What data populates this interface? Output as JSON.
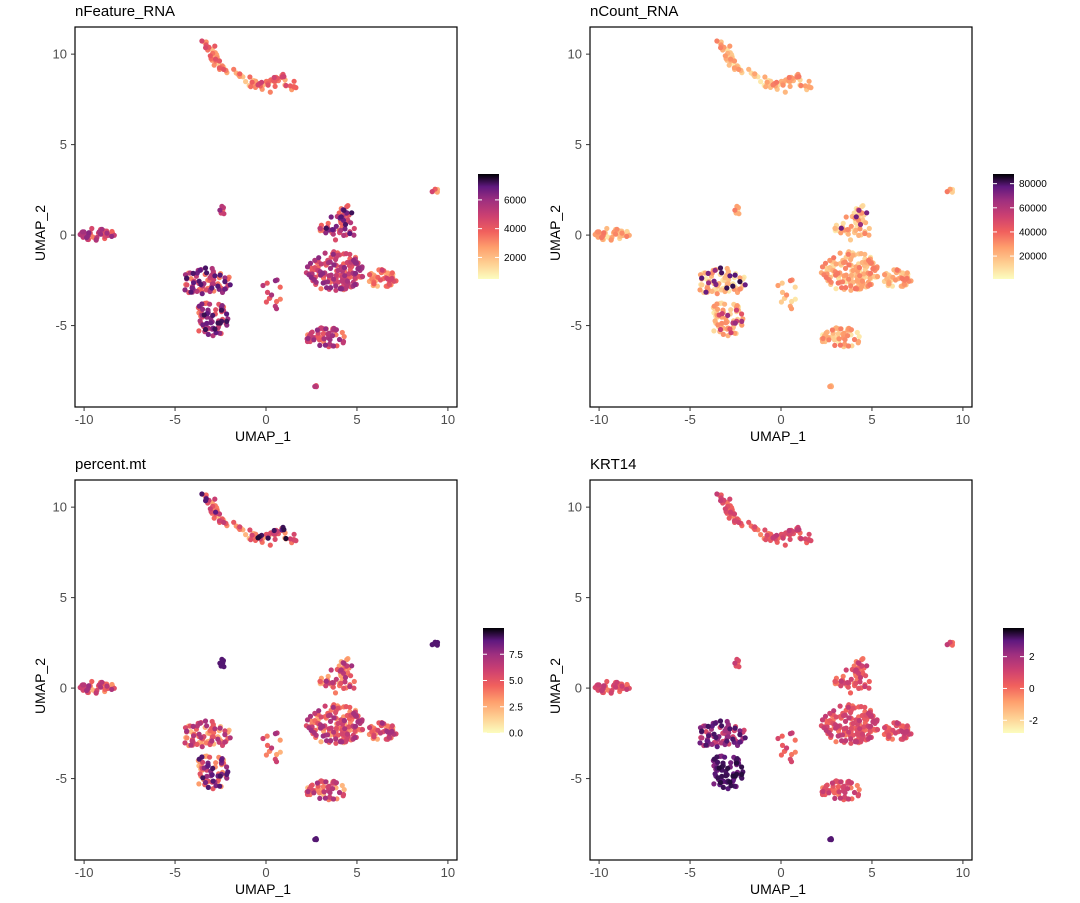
{
  "chart_data": [
    {
      "type": "scatter",
      "title": "nFeature_RNA",
      "xlabel": "UMAP_1",
      "ylabel": "UMAP_2",
      "xlim": [
        -10.5,
        10.5
      ],
      "ylim": [
        -9.5,
        11.5
      ],
      "xticks": [
        -10,
        -5,
        0,
        5,
        10
      ],
      "yticks": [
        -5,
        0,
        5,
        10
      ],
      "grid": false,
      "colorscale": "magma",
      "color_range": [
        500,
        7800
      ],
      "legend_ticks": [
        2000,
        4000,
        6000
      ],
      "legend_placement": "right",
      "point_profile": "features"
    },
    {
      "type": "scatter",
      "title": "nCount_RNA",
      "xlabel": "UMAP_1",
      "ylabel": "UMAP_2",
      "xlim": [
        -10.5,
        10.5
      ],
      "ylim": [
        -9.5,
        11.5
      ],
      "xticks": [
        -10,
        -5,
        0,
        5,
        10
      ],
      "yticks": [
        -5,
        0,
        5,
        10
      ],
      "grid": false,
      "colorscale": "magma",
      "color_range": [
        1000,
        88000
      ],
      "legend_ticks": [
        20000,
        40000,
        60000,
        80000
      ],
      "legend_placement": "right",
      "point_profile": "counts"
    },
    {
      "type": "scatter",
      "title": "percent.mt",
      "xlabel": "UMAP_1",
      "ylabel": "UMAP_2",
      "xlim": [
        -10.5,
        10.5
      ],
      "ylim": [
        -9.5,
        11.5
      ],
      "xticks": [
        -10,
        -5,
        0,
        5,
        10
      ],
      "yticks": [
        -5,
        0,
        5,
        10
      ],
      "grid": false,
      "colorscale": "magma",
      "color_range": [
        0,
        10
      ],
      "legend_ticks": [
        0.0,
        2.5,
        5.0,
        7.5
      ],
      "legend_tick_labels": [
        "0.0",
        "2.5",
        "5.0",
        "7.5"
      ],
      "legend_placement": "right",
      "point_profile": "mito"
    },
    {
      "type": "scatter",
      "title": "KRT14",
      "xlabel": "UMAP_1",
      "ylabel": "UMAP_2",
      "xlim": [
        -10.5,
        10.5
      ],
      "ylim": [
        -9.5,
        11.5
      ],
      "xticks": [
        -10,
        -5,
        0,
        5,
        10
      ],
      "yticks": [
        -5,
        0,
        5,
        10
      ],
      "grid": false,
      "colorscale": "magma",
      "color_range": [
        -2.8,
        3.8
      ],
      "legend_ticks": [
        -2,
        0,
        2
      ],
      "legend_placement": "right",
      "point_profile": "krt14"
    }
  ],
  "clusters": [
    {
      "id": "top-arc",
      "path": [
        [
          -3.6,
          10.6
        ],
        [
          -3.0,
          10.2
        ],
        [
          -2.5,
          9.4
        ],
        [
          -1.6,
          8.7
        ],
        [
          -0.6,
          8.3
        ],
        [
          0.4,
          8.5
        ],
        [
          1.0,
          8.6
        ],
        [
          1.6,
          8.1
        ]
      ],
      "spread": 0.35,
      "n": 95
    },
    {
      "id": "left-isolated",
      "center": [
        -9.3,
        0.05
      ],
      "rx": 1.0,
      "ry": 0.35,
      "n": 45
    },
    {
      "id": "left-middle",
      "center": [
        -3.3,
        -2.6
      ],
      "rx": 1.4,
      "ry": 0.8,
      "n": 80
    },
    {
      "id": "left-lower",
      "center": [
        -3.0,
        -4.6
      ],
      "rx": 1.0,
      "ry": 1.0,
      "n": 75
    },
    {
      "id": "small-upper",
      "center": [
        -2.4,
        1.3
      ],
      "rx": 0.15,
      "ry": 0.3,
      "n": 6
    },
    {
      "id": "central-left",
      "center": [
        0.3,
        -3.2
      ],
      "rx": 0.6,
      "ry": 1.0,
      "n": 14
    },
    {
      "id": "right-upper",
      "path": [
        [
          3.0,
          0.6
        ],
        [
          3.9,
          0.2
        ],
        [
          4.5,
          1.6
        ],
        [
          4.4,
          0.0
        ]
      ],
      "spread": 0.4,
      "n": 60
    },
    {
      "id": "right-main",
      "center": [
        3.8,
        -2.0
      ],
      "rx": 1.6,
      "ry": 1.1,
      "n": 150
    },
    {
      "id": "right-wing",
      "center": [
        6.4,
        -2.4
      ],
      "rx": 0.8,
      "ry": 0.5,
      "n": 45
    },
    {
      "id": "bottom-ring",
      "center": [
        3.3,
        -5.7
      ],
      "rx": 1.1,
      "ry": 0.6,
      "n": 55
    },
    {
      "id": "far-right",
      "center": [
        9.3,
        2.45
      ],
      "rx": 0.2,
      "ry": 0.1,
      "n": 6
    },
    {
      "id": "bottom-dot",
      "center": [
        2.7,
        -8.4
      ],
      "rx": 0.1,
      "ry": 0.1,
      "n": 4
    }
  ]
}
